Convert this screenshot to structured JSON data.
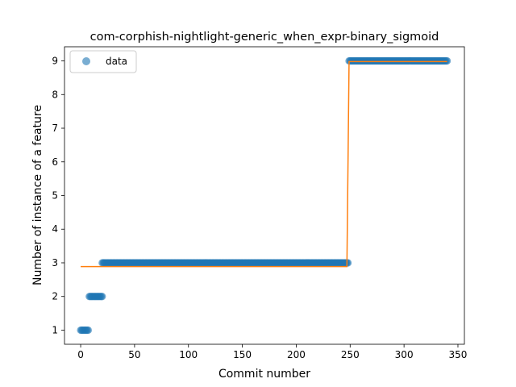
{
  "chart_data": {
    "type": "scatter",
    "title": "com-corphish-nightlight-generic_when_expr-binary_sigmoid",
    "xlabel": "Commit number",
    "ylabel": "Number of instance of a feature",
    "xlim": [
      -15,
      356
    ],
    "ylim": [
      0.58,
      9.42
    ],
    "xticks": [
      0,
      50,
      100,
      150,
      200,
      250,
      300,
      350
    ],
    "yticks": [
      1,
      2,
      3,
      4,
      5,
      6,
      7,
      8,
      9
    ],
    "grid": false,
    "legend": {
      "placement": "top-left",
      "entries": [
        "data"
      ]
    },
    "colors": {
      "data": "#1f77b4",
      "fit": "#ff7f0e"
    },
    "series": [
      {
        "name": "data",
        "kind": "points",
        "segments": [
          {
            "x_start": 0,
            "x_end": 7,
            "y": 1
          },
          {
            "x_start": 8,
            "x_end": 20,
            "y": 2
          },
          {
            "x_start": 20,
            "x_end": 248,
            "y": 3
          },
          {
            "x_start": 249,
            "x_end": 340,
            "y": 9
          }
        ]
      },
      {
        "kind": "line",
        "x": [
          0,
          247,
          248,
          249,
          340
        ],
        "y": [
          2.89,
          2.89,
          5.9,
          8.98,
          8.98
        ]
      }
    ]
  }
}
